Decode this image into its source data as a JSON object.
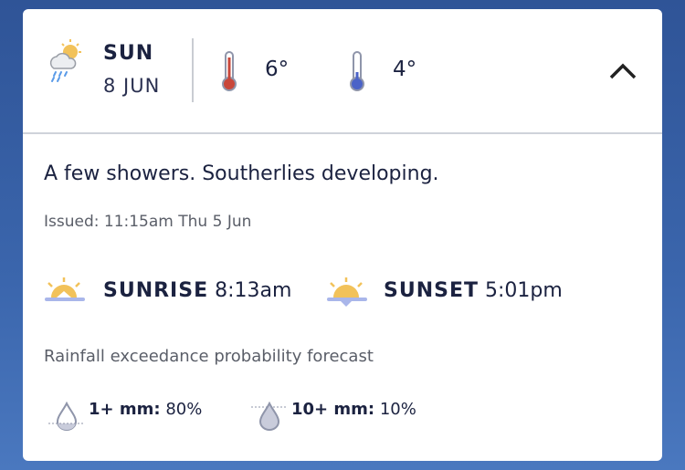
{
  "forecast": {
    "day": "SUN",
    "date": "8 JUN",
    "weather_icon": "sun-cloud-rain-icon",
    "max_temp": "6°",
    "min_temp": "4°",
    "collapse_icon": "chevron-up-icon",
    "description": "A few showers. Southerlies developing.",
    "issued": "Issued: 11:15am Thu 5 Jun",
    "sunrise_label": "SUNRISE",
    "sunrise_time": "8:13am",
    "sunset_label": "SUNSET",
    "sunset_time": "5:01pm",
    "rainfall_title": "Rainfall exceedance probability forecast",
    "rainfall": [
      {
        "label": "1+ mm:",
        "value": "80%"
      },
      {
        "label": "10+ mm:",
        "value": "10%"
      }
    ],
    "colors": {
      "max": "#c9473a",
      "min": "#4b63c8",
      "sun": "#f2c25a"
    }
  }
}
